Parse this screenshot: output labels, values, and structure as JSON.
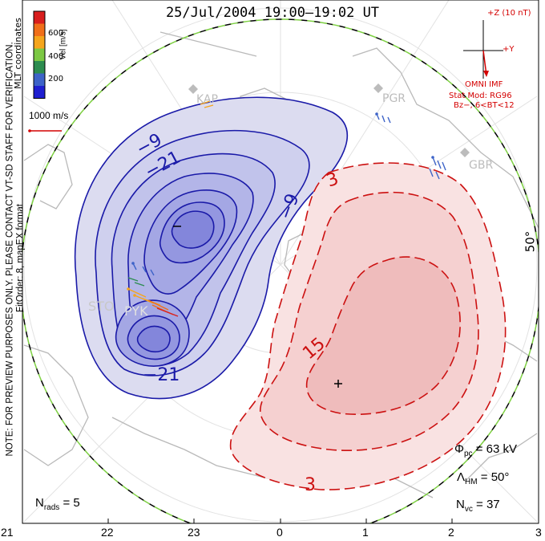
{
  "title": "25/Jul/2004  19:00–19:02  UT",
  "side_note_line1": "NOTE: FOR PREVIEW PURPOSES ONLY. PLEASE CONTACT VT-SD STAFF FOR VERIFICATION.",
  "side_note_line2": "FitOrder: 8, mapEX format",
  "coord_label": "MLT coordinates",
  "colorbar": {
    "label": "Vel [m/s]",
    "ticks": [
      "600",
      "400",
      "200"
    ],
    "colors": [
      "#d81e1e",
      "#f06f1a",
      "#f5a51c",
      "#7cc843",
      "#2c8c4f",
      "#3d63c8",
      "#1f1fd0"
    ]
  },
  "velocity_scale": "1000 m/s",
  "imf": {
    "z_label": "+Z (10 nT)",
    "y_label": "+Y",
    "source": "OMNI IMF",
    "model_line1": "Stat Mod: RG96",
    "model_line2": "Bz−, 6<BT<12"
  },
  "radars": [
    "KAP",
    "PGR",
    "GBR",
    "STO",
    "PYK"
  ],
  "contours": {
    "negative_labels": [
      "−9",
      "−21",
      "−9",
      "−21"
    ],
    "positive_labels": [
      "3",
      "15",
      "3"
    ],
    "min_marker": "−",
    "max_marker": "+"
  },
  "stats": {
    "phi_pc": "Φ",
    "phi_sub": "pc",
    "phi_value": " = 63 kV",
    "lambda": "Λ",
    "lambda_sub": "HM",
    "lambda_value": " = 50°",
    "nvc": "N",
    "nvc_sub": "vc",
    "nvc_value": " = 37",
    "nrads": "N",
    "nrads_sub": "rads",
    "nrads_value": " = 5"
  },
  "lat_label": "50°",
  "mlt_ticks": [
    "21",
    "22",
    "23",
    "0",
    "1",
    "2",
    "3"
  ],
  "colors": {
    "negative": "#1a1aa8",
    "positive": "#cc1111",
    "coast": "#b8b8b8"
  }
}
